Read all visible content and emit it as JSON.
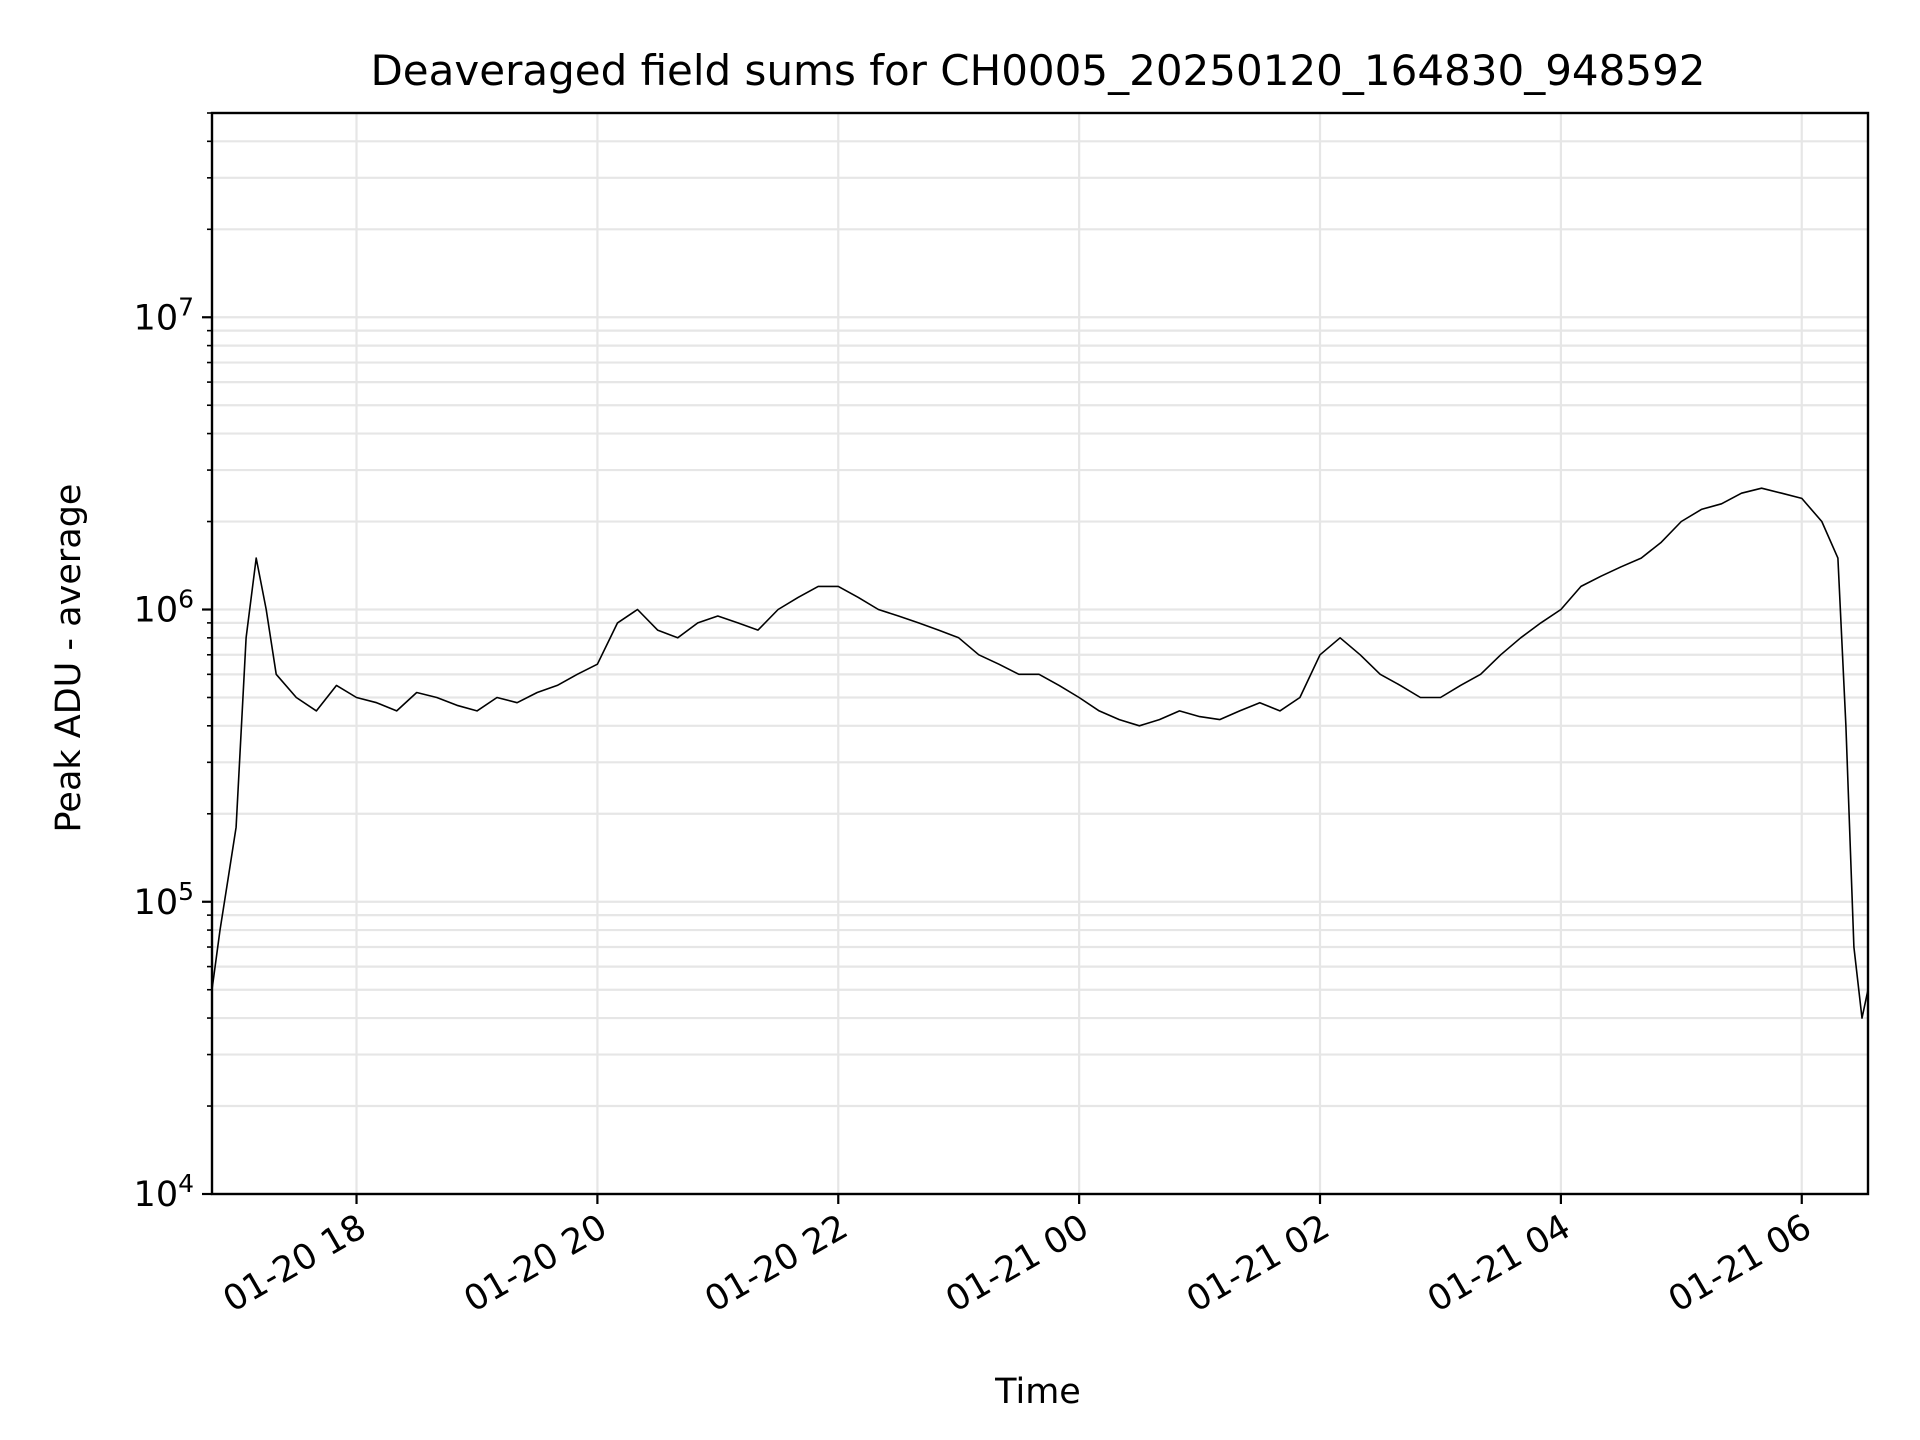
{
  "chart_data": {
    "type": "line",
    "title": "Deaveraged field sums for CH0005_20250120_164830_948592",
    "xlabel": "Time",
    "ylabel": "Peak ADU - average",
    "yscale": "log",
    "ylim": [
      10000,
      50000000
    ],
    "xlim": [
      "2025-01-20 16:48",
      "2025-01-21 06:33"
    ],
    "grid": true,
    "line_color": "#000000",
    "x_ticks": [
      {
        "value": "2025-01-20 18:00",
        "label": "01-20 18"
      },
      {
        "value": "2025-01-20 20:00",
        "label": "01-20 20"
      },
      {
        "value": "2025-01-20 22:00",
        "label": "01-20 22"
      },
      {
        "value": "2025-01-21 00:00",
        "label": "01-21 00"
      },
      {
        "value": "2025-01-21 02:00",
        "label": "01-21 02"
      },
      {
        "value": "2025-01-21 04:00",
        "label": "01-21 04"
      },
      {
        "value": "2025-01-21 06:00",
        "label": "01-21 06"
      }
    ],
    "y_ticks": [
      {
        "value": 10000,
        "base": "10",
        "exp": "4"
      },
      {
        "value": 100000,
        "base": "10",
        "exp": "5"
      },
      {
        "value": 1000000,
        "base": "10",
        "exp": "6"
      },
      {
        "value": 10000000,
        "base": "10",
        "exp": "7"
      }
    ],
    "series": [
      {
        "x": [
          "2025-01-20 16:48",
          "2025-01-20 16:52",
          "2025-01-20 16:56",
          "2025-01-20 17:00",
          "2025-01-20 17:05",
          "2025-01-20 17:10",
          "2025-01-20 17:15",
          "2025-01-20 17:20",
          "2025-01-20 17:30",
          "2025-01-20 17:40",
          "2025-01-20 17:50",
          "2025-01-20 18:00",
          "2025-01-20 18:10",
          "2025-01-20 18:20",
          "2025-01-20 18:30",
          "2025-01-20 18:40",
          "2025-01-20 18:50",
          "2025-01-20 19:00",
          "2025-01-20 19:10",
          "2025-01-20 19:20",
          "2025-01-20 19:30",
          "2025-01-20 19:40",
          "2025-01-20 19:50",
          "2025-01-20 20:00",
          "2025-01-20 20:10",
          "2025-01-20 20:20",
          "2025-01-20 20:30",
          "2025-01-20 20:40",
          "2025-01-20 20:50",
          "2025-01-20 21:00",
          "2025-01-20 21:10",
          "2025-01-20 21:20",
          "2025-01-20 21:30",
          "2025-01-20 21:40",
          "2025-01-20 21:50",
          "2025-01-20 22:00",
          "2025-01-20 22:10",
          "2025-01-20 22:20",
          "2025-01-20 22:30",
          "2025-01-20 22:40",
          "2025-01-20 22:50",
          "2025-01-20 23:00",
          "2025-01-20 23:10",
          "2025-01-20 23:20",
          "2025-01-20 23:30",
          "2025-01-20 23:40",
          "2025-01-20 23:50",
          "2025-01-21 00:00",
          "2025-01-21 00:10",
          "2025-01-21 00:20",
          "2025-01-21 00:30",
          "2025-01-21 00:40",
          "2025-01-21 00:50",
          "2025-01-21 01:00",
          "2025-01-21 01:10",
          "2025-01-21 01:20",
          "2025-01-21 01:30",
          "2025-01-21 01:40",
          "2025-01-21 01:50",
          "2025-01-21 02:00",
          "2025-01-21 02:10",
          "2025-01-21 02:20",
          "2025-01-21 02:30",
          "2025-01-21 02:40",
          "2025-01-21 02:50",
          "2025-01-21 03:00",
          "2025-01-21 03:10",
          "2025-01-21 03:20",
          "2025-01-21 03:30",
          "2025-01-21 03:40",
          "2025-01-21 03:50",
          "2025-01-21 04:00",
          "2025-01-21 04:10",
          "2025-01-21 04:20",
          "2025-01-21 04:30",
          "2025-01-21 04:40",
          "2025-01-21 04:50",
          "2025-01-21 05:00",
          "2025-01-21 05:10",
          "2025-01-21 05:20",
          "2025-01-21 05:30",
          "2025-01-21 05:40",
          "2025-01-21 05:50",
          "2025-01-21 06:00",
          "2025-01-21 06:10",
          "2025-01-21 06:18",
          "2025-01-21 06:22",
          "2025-01-21 06:26",
          "2025-01-21 06:30",
          "2025-01-21 06:33"
        ],
        "y": [
          50000,
          80000,
          120000,
          180000,
          800000,
          1500000,
          1000000,
          600000,
          500000,
          450000,
          550000,
          500000,
          480000,
          450000,
          520000,
          500000,
          470000,
          450000,
          500000,
          480000,
          520000,
          550000,
          600000,
          650000,
          900000,
          1000000,
          850000,
          800000,
          900000,
          950000,
          900000,
          850000,
          1000000,
          1100000,
          1200000,
          1200000,
          1100000,
          1000000,
          950000,
          900000,
          850000,
          800000,
          700000,
          650000,
          600000,
          600000,
          550000,
          500000,
          450000,
          420000,
          400000,
          420000,
          450000,
          430000,
          420000,
          450000,
          480000,
          450000,
          500000,
          700000,
          800000,
          700000,
          600000,
          550000,
          500000,
          500000,
          550000,
          600000,
          700000,
          800000,
          900000,
          1000000,
          1200000,
          1300000,
          1400000,
          1500000,
          1700000,
          2000000,
          2200000,
          2300000,
          2500000,
          2600000,
          2500000,
          2400000,
          2000000,
          1500000,
          400000,
          70000,
          40000,
          50000
        ]
      }
    ]
  }
}
